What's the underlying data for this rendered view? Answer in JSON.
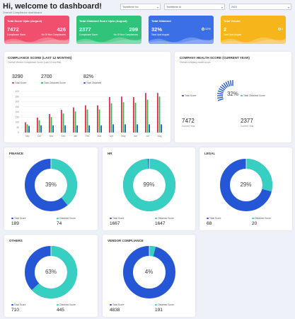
{
  "header": {
    "title": "Hi, welcome to dashboard!",
    "subtitle": "Overall Compliance dashboard",
    "filters": [
      "TechMeme Inc",
      "TechMeme AI",
      "2023"
    ]
  },
  "kpis": [
    {
      "title": "Total Score Upto (August)",
      "v1": "7472",
      "l1": "Compliance Score",
      "v2": "426",
      "l2": "No Of Non Compliances",
      "color": "#f0506e"
    },
    {
      "title": "Total Obtained Score Upto (August)",
      "v1": "2377",
      "l1": "Compliance Score",
      "v2": "299",
      "l2": "No Of Non Compliances",
      "color": "#2fc47a"
    },
    {
      "title": "Total Obtained",
      "v1": "32%",
      "l1": "Total Upto August",
      "v2": "",
      "l2": "",
      "small": "32%",
      "color": "#3b6fe6"
    },
    {
      "title": "Total Vendor",
      "v1": "2",
      "l1": "Total Upto August",
      "v2": "",
      "l2": "",
      "small": "2",
      "color": "#f5b51b"
    }
  ],
  "compliance": {
    "title": "COMPLIANCE SCORE (LAST 12 MONTHS)",
    "subtitle": "Overall Vendor Compliance Score (Last 12 months)",
    "stats": [
      {
        "value": "3290",
        "label": "Total Score",
        "color": "#e0314a"
      },
      {
        "value": "2700",
        "label": "Total Obtained Score",
        "color": "#2eb84c"
      },
      {
        "value": "82%",
        "label": "Total Obtained",
        "color": "#2456d6"
      }
    ]
  },
  "chart_data": {
    "type": "bar",
    "categories": [
      "Sep",
      "Oct",
      "Nov",
      "Dec",
      "Jan",
      "Feb",
      "Mar",
      "Apr",
      "May",
      "Jun",
      "Jul",
      "Aug"
    ],
    "ylim": [
      0,
      400
    ],
    "yticks": [
      "400",
      "350",
      "300",
      "250",
      "200",
      "150",
      "100",
      "50",
      "0"
    ],
    "series": [
      {
        "name": "Total Score",
        "color": "#e0314a",
        "values": [
          100,
          145,
          180,
          220,
          245,
          265,
          265,
          345,
          350,
          345,
          385,
          385
        ]
      },
      {
        "name": "Total Obtained Score",
        "color": "#2eb84c",
        "values": [
          80,
          120,
          150,
          185,
          205,
          225,
          225,
          285,
          295,
          290,
          320,
          350
        ]
      },
      {
        "name": "Total Obtained",
        "color": "#2456d6",
        "values": [
          65,
          70,
          70,
          70,
          70,
          70,
          70,
          80,
          80,
          80,
          80,
          80
        ]
      }
    ]
  },
  "health": {
    "title": "COMPANY HEALTH SCORE (CURRENT YEAR)",
    "subtitle": "Overall company health score",
    "percent": "32%",
    "fraction": 0.32,
    "stats": [
      {
        "label": "Total Score",
        "value": "7472",
        "sub": "Current Year",
        "color": "#2456d6"
      },
      {
        "label": "Total Obtained Score",
        "value": "2377",
        "sub": "Current Year",
        "color": "#38cfc3"
      }
    ]
  },
  "donuts": [
    {
      "title": "FINANCE",
      "percent": "39%",
      "fraction": 0.39,
      "a_label": "Total Score",
      "a_value": "189",
      "b_label": "Obtained Score",
      "b_value": "74"
    },
    {
      "title": "HR",
      "percent": "99%",
      "fraction": 0.99,
      "a_label": "Total Score",
      "a_value": "1667",
      "b_label": "Obtained Score",
      "b_value": "1647"
    },
    {
      "title": "LEGAL",
      "percent": "29%",
      "fraction": 0.29,
      "a_label": "Total Score",
      "a_value": "68",
      "b_label": "Obtained Score",
      "b_value": "20"
    },
    {
      "title": "OTHERS",
      "percent": "63%",
      "fraction": 0.63,
      "a_label": "Total Score",
      "a_value": "710",
      "b_label": "Obtained Score",
      "b_value": "445"
    },
    {
      "title": "VENDOR COMPLIANCE",
      "percent": "4%",
      "fraction": 0.04,
      "a_label": "Total Score",
      "a_value": "4838",
      "b_label": "Obtained Score",
      "b_value": "191"
    }
  ],
  "colors": {
    "donut_total": "#2456d6",
    "donut_obtained": "#38cfc3"
  }
}
